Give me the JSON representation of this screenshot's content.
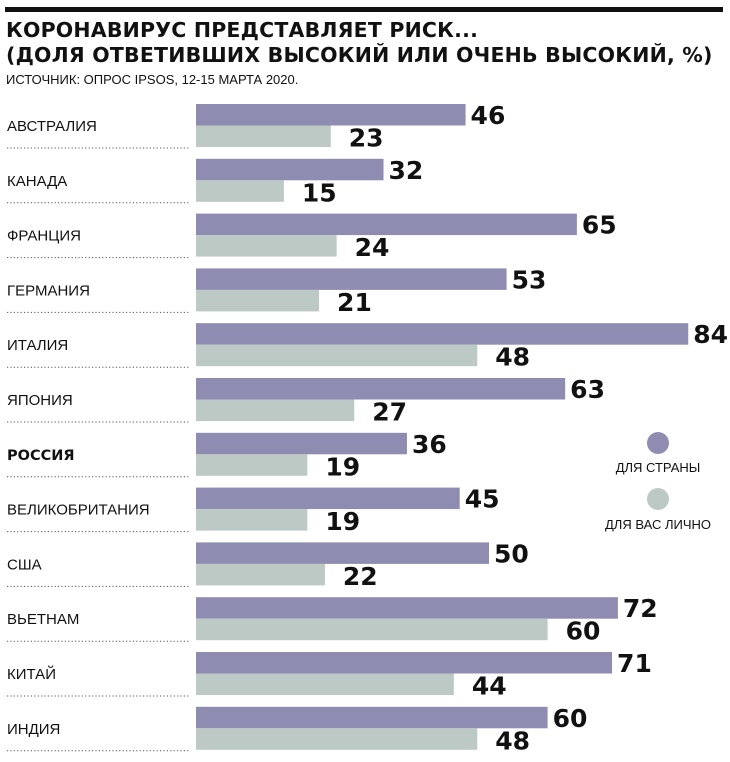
{
  "header": {
    "title_line1": "КОРОНАВИРУС ПРЕДСТАВЛЯЕТ РИСК...",
    "title_line2": "(ДОЛЯ ОТВЕТИВШИХ ВЫСОКИЙ ИЛИ ОЧЕНЬ ВЫСОКИЙ, %)",
    "source": "ИСТОЧНИК:  ОПРОС IPSOS,  12-15 МАРТА 2020."
  },
  "chart_data": {
    "type": "bar",
    "orientation": "horizontal",
    "title": "КОРОНАВИРУС ПРЕДСТАВЛЯЕТ РИСК... (ДОЛЯ ОТВЕТИВШИХ ВЫСОКИЙ ИЛИ ОЧЕНЬ ВЫСОКИЙ, %)",
    "categories": [
      "АВСТРАЛИЯ",
      "КАНАДА",
      "ФРАНЦИЯ",
      "ГЕРМАНИЯ",
      "ИТАЛИЯ",
      "ЯПОНИЯ",
      "РОССИЯ",
      "ВЕЛИКОБРИТАНИЯ",
      "США",
      "ВЬЕТНАМ",
      "КИТАЙ",
      "ИНДИЯ"
    ],
    "highlighted_category": "РОССИЯ",
    "series": [
      {
        "name": "ДЛЯ СТРАНЫ",
        "color": "#8f8cb1",
        "values": [
          46,
          32,
          65,
          53,
          84,
          63,
          36,
          45,
          50,
          72,
          71,
          60
        ]
      },
      {
        "name": "ДЛЯ ВАС ЛИЧНО",
        "color": "#bdc9c4",
        "values": [
          23,
          15,
          24,
          21,
          48,
          27,
          19,
          19,
          22,
          60,
          44,
          48
        ]
      }
    ],
    "xlim": [
      0,
      84
    ],
    "grid": false,
    "legend_position": "right"
  }
}
